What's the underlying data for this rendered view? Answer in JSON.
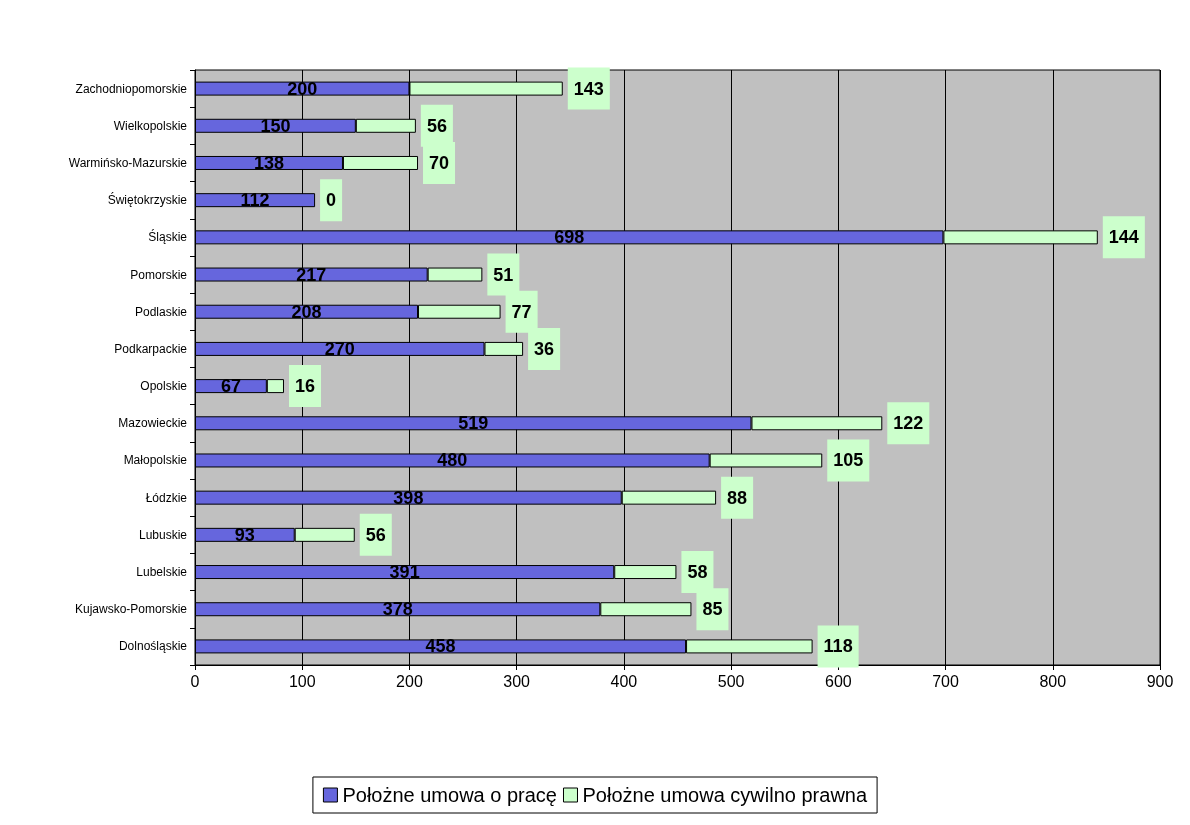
{
  "chart_data": {
    "type": "bar",
    "orientation": "horizontal",
    "stacked": true,
    "categories": [
      "Zachodniopomorskie",
      "Wielkopolskie",
      "Warmińsko-Mazurskie",
      "Świętokrzyskie",
      "Śląskie",
      "Pomorskie",
      "Podlaskie",
      "Podkarpackie",
      "Opolskie",
      "Mazowieckie",
      "Małopolskie",
      "Łódzkie",
      "Lubuskie",
      "Lubelskie",
      "Kujawsko-Pomorskie",
      "Dolnośląskie"
    ],
    "series": [
      {
        "name": "Położne umowa o pracę",
        "color": "#6666dd",
        "values": [
          200,
          150,
          138,
          112,
          698,
          217,
          208,
          270,
          67,
          519,
          480,
          398,
          93,
          391,
          378,
          458
        ]
      },
      {
        "name": "Położne umowa cywilno prawna",
        "color": "#ccffcc",
        "values": [
          143,
          56,
          70,
          0,
          144,
          51,
          77,
          36,
          16,
          122,
          105,
          88,
          56,
          58,
          85,
          118
        ]
      }
    ],
    "xlim": [
      0,
      900
    ],
    "xticks": [
      0,
      100,
      200,
      300,
      400,
      500,
      600,
      700,
      800,
      900
    ],
    "grid": "x",
    "legend": "bottom",
    "data_labels": true
  }
}
